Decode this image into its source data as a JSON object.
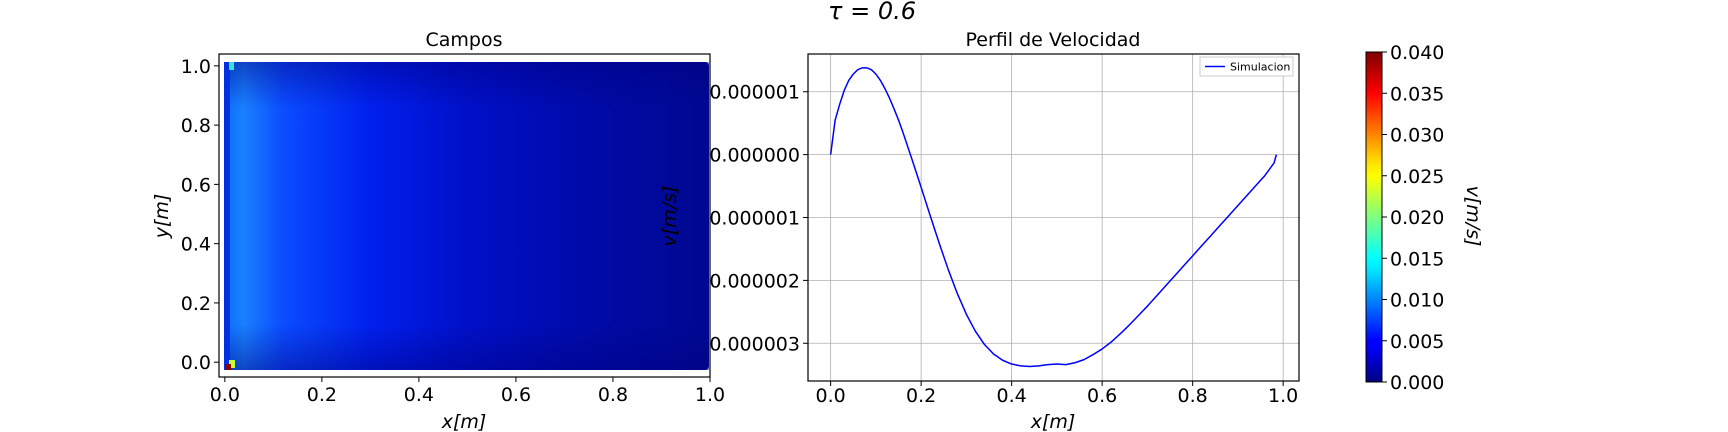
{
  "suptitle": "τ = 0.6",
  "chart_data": [
    {
      "type": "heatmap",
      "title": "Campos",
      "xlabel": "x[m]",
      "ylabel": "y[m]",
      "xlim": [
        -0.012,
        1.0
      ],
      "ylim": [
        -0.05,
        1.04
      ],
      "xticks": [
        0.0,
        0.2,
        0.4,
        0.6,
        0.8,
        1.0
      ],
      "xtick_labels": [
        "0.0",
        "0.2",
        "0.4",
        "0.6",
        "0.8",
        "1.0"
      ],
      "yticks": [
        0.0,
        0.2,
        0.4,
        0.6,
        0.8,
        1.0
      ],
      "ytick_labels": [
        "0.0",
        "0.2",
        "0.4",
        "0.6",
        "0.8",
        "1.0"
      ],
      "field": "v",
      "colormap": "jet",
      "grid": false
    },
    {
      "type": "line",
      "title": "Perfil de Velocidad",
      "xlabel": "x[m]",
      "ylabel": "v[m/s]",
      "xlim": [
        -0.05,
        1.035
      ],
      "ylim": [
        -3.6e-06,
        1.6e-06
      ],
      "xticks": [
        0.0,
        0.2,
        0.4,
        0.6,
        0.8,
        1.0
      ],
      "xtick_labels": [
        "0.0",
        "0.2",
        "0.4",
        "0.6",
        "0.8",
        "1.0"
      ],
      "yticks": [
        1e-06,
        0.0,
        -1e-06,
        -2e-06,
        -3e-06
      ],
      "ytick_labels": [
        "0.000001",
        "0.000000",
        "0.000001",
        "0.000002",
        "0.000003"
      ],
      "grid": true,
      "legend_position": "top-right",
      "series": [
        {
          "name": "Simulacion",
          "color": "#0000ff",
          "x": [
            0.0,
            0.01,
            0.02,
            0.03,
            0.04,
            0.05,
            0.06,
            0.07,
            0.08,
            0.09,
            0.1,
            0.11,
            0.12,
            0.13,
            0.14,
            0.15,
            0.16,
            0.18,
            0.2,
            0.22,
            0.24,
            0.26,
            0.28,
            0.3,
            0.32,
            0.34,
            0.36,
            0.38,
            0.4,
            0.42,
            0.44,
            0.46,
            0.48,
            0.5,
            0.52,
            0.54,
            0.56,
            0.58,
            0.6,
            0.62,
            0.64,
            0.66,
            0.68,
            0.7,
            0.72,
            0.74,
            0.76,
            0.78,
            0.8,
            0.82,
            0.84,
            0.86,
            0.88,
            0.9,
            0.92,
            0.94,
            0.96,
            0.98,
            0.985
          ],
          "values": [
            0.0,
            5.5e-07,
            8e-07,
            1.02e-06,
            1.18e-06,
            1.28e-06,
            1.35e-06,
            1.38e-06,
            1.38e-06,
            1.35e-06,
            1.28e-06,
            1.18e-06,
            1.05e-06,
            9e-07,
            7.3e-07,
            5.5e-07,
            3.5e-07,
            -8e-08,
            -5.2e-07,
            -9.7e-07,
            -1.41e-06,
            -1.83e-06,
            -2.21e-06,
            -2.54e-06,
            -2.81e-06,
            -3.02e-06,
            -3.17e-06,
            -3.27e-06,
            -3.33e-06,
            -3.36e-06,
            -3.37e-06,
            -3.36e-06,
            -3.34e-06,
            -3.33e-06,
            -3.34e-06,
            -3.31e-06,
            -3.26e-06,
            -3.18e-06,
            -3.09e-06,
            -2.98e-06,
            -2.85e-06,
            -2.71e-06,
            -2.56e-06,
            -2.41e-06,
            -2.25e-06,
            -2.09e-06,
            -1.93e-06,
            -1.77e-06,
            -1.61e-06,
            -1.45e-06,
            -1.29e-06,
            -1.13e-06,
            -9.7e-07,
            -8.1e-07,
            -6.5e-07,
            -4.9e-07,
            -3.3e-07,
            -1.3e-07,
            0.0
          ]
        }
      ]
    },
    {
      "type": "colorbar",
      "label": "v[m/s]",
      "colormap": "jet",
      "vmin": 0.0,
      "vmax": 0.04,
      "ticks": [
        0.0,
        0.005,
        0.01,
        0.015,
        0.02,
        0.025,
        0.03,
        0.035,
        0.04
      ],
      "tick_labels": [
        "0.000",
        "0.005",
        "0.010",
        "0.015",
        "0.020",
        "0.025",
        "0.030",
        "0.035",
        "0.040"
      ]
    }
  ]
}
